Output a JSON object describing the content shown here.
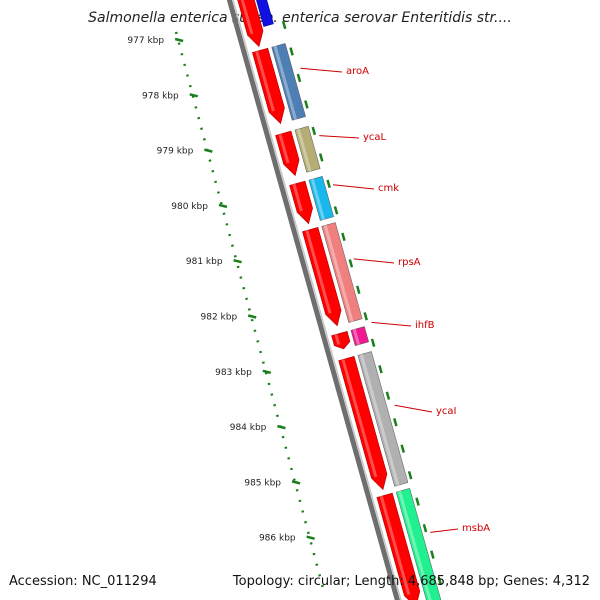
{
  "title": "Salmonella enterica subsp. enterica serovar Enteritidis str....",
  "footer": {
    "accession": "Accession: NC_011294",
    "summary": "Topology: circular; Length: 4,685,848 bp; Genes: 4,312"
  },
  "colors": {
    "backbone": "#8c8c8c",
    "strand_red": "#ff0000",
    "tick_green": "#1a7f1a",
    "label_red": "#cc0000"
  },
  "scale_ticks": [
    "977 kbp",
    "978 kbp",
    "979 kbp",
    "980 kbp",
    "981 kbp",
    "982 kbp",
    "983 kbp",
    "984 kbp",
    "985 kbp",
    "986 kbp"
  ],
  "genes": [
    {
      "name": "aroA",
      "color": "#4e7fb4"
    },
    {
      "name": "ycaL",
      "color": "#b5ad74"
    },
    {
      "name": "cmk",
      "color": "#18b8ec"
    },
    {
      "name": "rpsA",
      "color": "#f08080"
    },
    {
      "name": "ihfB",
      "color": "#f01890"
    },
    {
      "name": "ycaI",
      "color": "#b0b0b0"
    },
    {
      "name": "msbA",
      "color": "#20f090"
    }
  ]
}
